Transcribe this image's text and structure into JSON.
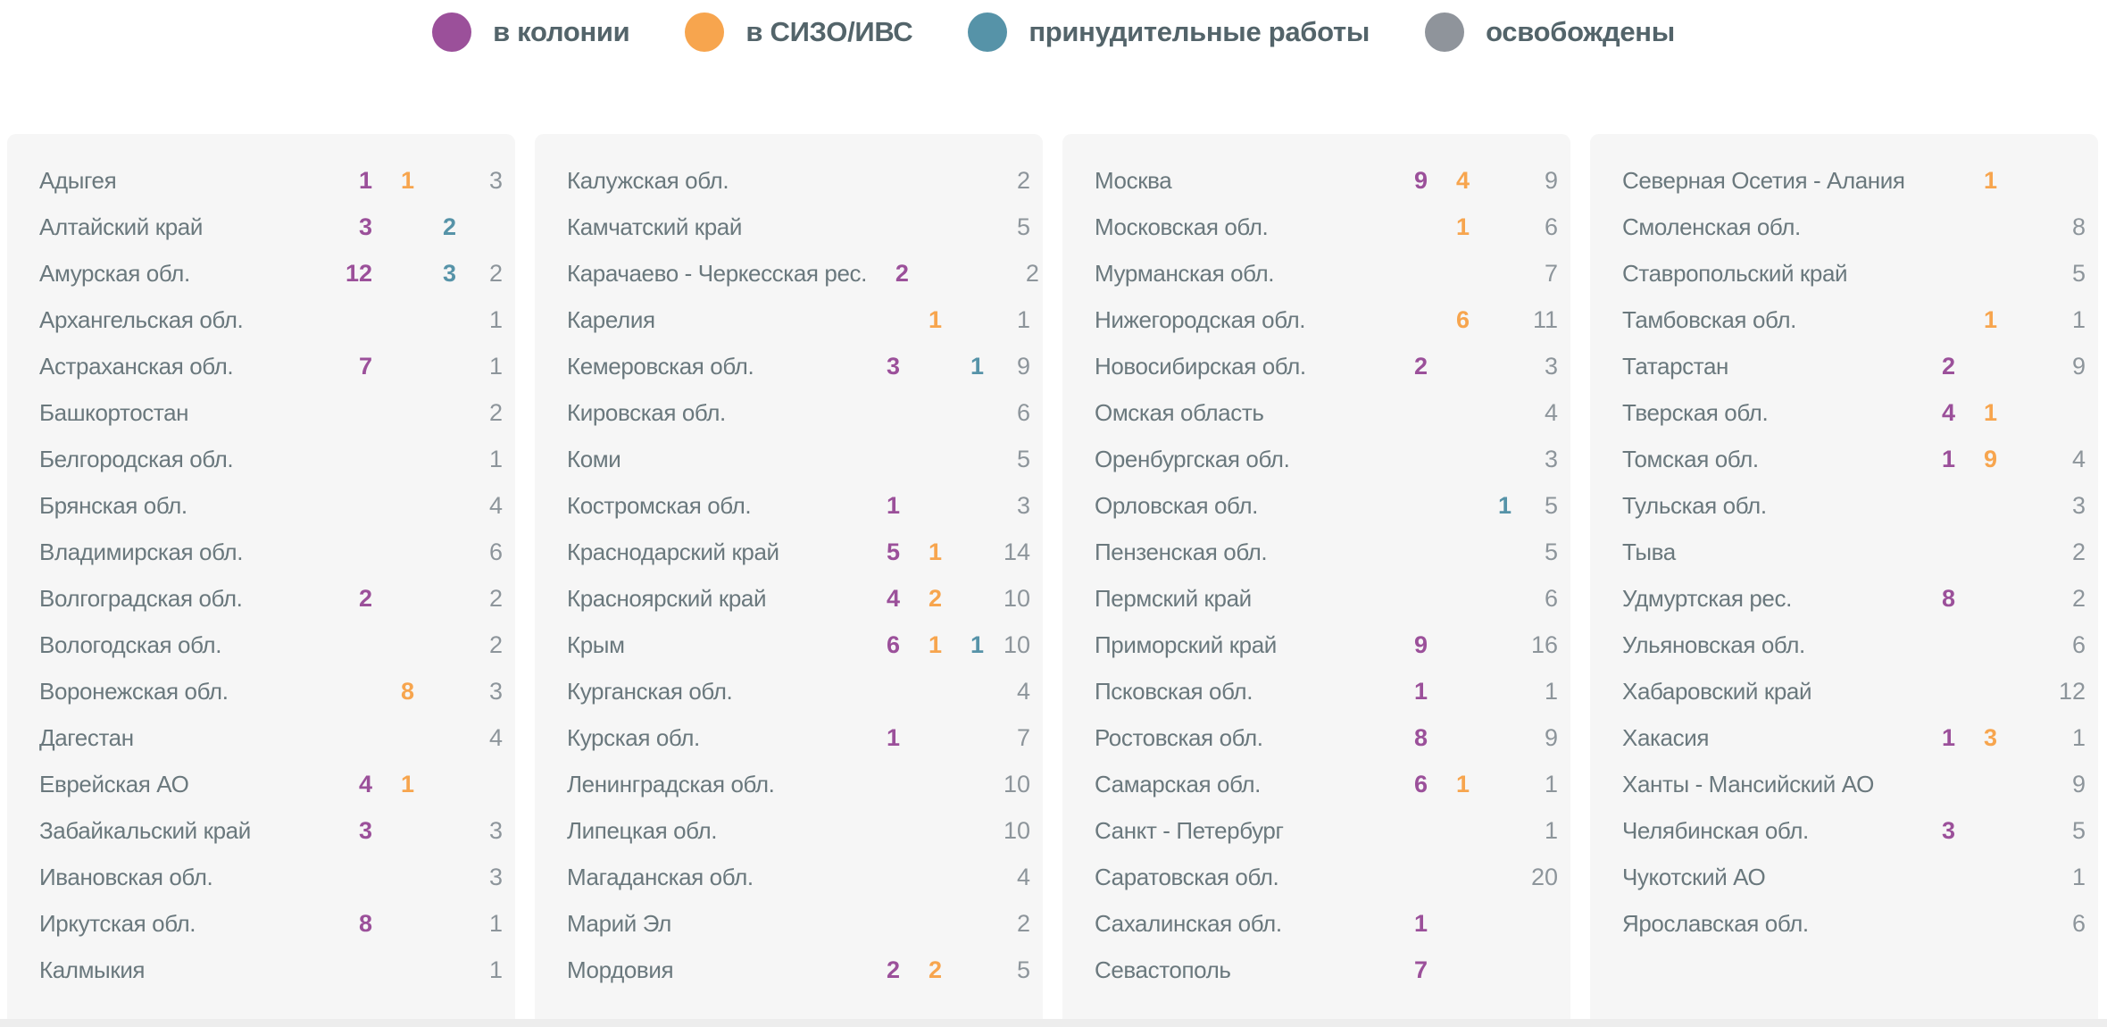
{
  "colors": {
    "colony": "#9b509a",
    "sizo": "#f7a54e",
    "forced": "#5693a8",
    "released": "#8f949b",
    "released_number": "#8d959b",
    "label": "#6a787d",
    "legend_text": "#53646a",
    "panel_bg": "#f6f6f6",
    "page_bg": "#ffffff"
  },
  "legend": {
    "items": [
      {
        "label": "в колонии",
        "color": "#9b509a",
        "key": "colony"
      },
      {
        "label": "в СИЗО/ИВС",
        "color": "#f7a54e",
        "key": "sizo"
      },
      {
        "label": "принудительные работы",
        "color": "#5693a8",
        "key": "forced"
      },
      {
        "label": "освобождены",
        "color": "#8f949b",
        "key": "released"
      }
    ]
  },
  "chart_data": {
    "type": "table",
    "series_legend": [
      "в колонии",
      "в СИЗО/ИВС",
      "принудительные работы",
      "освобождены"
    ],
    "columns": [
      {
        "rows": [
          {
            "region": "Адыгея",
            "colony": "1",
            "sizo": "1",
            "forced": "",
            "released": "3"
          },
          {
            "region": "Алтайский край",
            "colony": "3",
            "sizo": "",
            "forced": "2",
            "released": ""
          },
          {
            "region": "Амурская обл.",
            "colony": "12",
            "sizo": "",
            "forced": "3",
            "released": "2"
          },
          {
            "region": "Архангельская обл.",
            "colony": "",
            "sizo": "",
            "forced": "",
            "released": "1"
          },
          {
            "region": "Астраханская обл.",
            "colony": "7",
            "sizo": "",
            "forced": "",
            "released": "1"
          },
          {
            "region": "Башкортостан",
            "colony": "",
            "sizo": "",
            "forced": "",
            "released": "2"
          },
          {
            "region": "Белгородская обл.",
            "colony": "",
            "sizo": "",
            "forced": "",
            "released": "1"
          },
          {
            "region": "Брянская обл.",
            "colony": "",
            "sizo": "",
            "forced": "",
            "released": "4"
          },
          {
            "region": "Владимирская обл.",
            "colony": "",
            "sizo": "",
            "forced": "",
            "released": "6"
          },
          {
            "region": "Волгоградская обл.",
            "colony": "2",
            "sizo": "",
            "forced": "",
            "released": "2"
          },
          {
            "region": "Вологодская обл.",
            "colony": "",
            "sizo": "",
            "forced": "",
            "released": "2"
          },
          {
            "region": "Воронежская обл.",
            "colony": "",
            "sizo": "8",
            "forced": "",
            "released": "3"
          },
          {
            "region": "Дагестан",
            "colony": "",
            "sizo": "",
            "forced": "",
            "released": "4"
          },
          {
            "region": "Еврейская АО",
            "colony": "4",
            "sizo": "1",
            "forced": "",
            "released": ""
          },
          {
            "region": "Забайкальский край",
            "colony": "3",
            "sizo": "",
            "forced": "",
            "released": "3"
          },
          {
            "region": "Ивановская обл.",
            "colony": "",
            "sizo": "",
            "forced": "",
            "released": "3"
          },
          {
            "region": "Иркутская обл.",
            "colony": "8",
            "sizo": "",
            "forced": "",
            "released": "1"
          },
          {
            "region": "Калмыкия",
            "colony": "",
            "sizo": "",
            "forced": "",
            "released": "1"
          }
        ]
      },
      {
        "rows": [
          {
            "region": "Калужская обл.",
            "colony": "",
            "sizo": "",
            "forced": "",
            "released": "2"
          },
          {
            "region": "Камчатский край",
            "colony": "",
            "sizo": "",
            "forced": "",
            "released": "5"
          },
          {
            "region": "Карачаево - Черкесская рес.",
            "colony": "2",
            "sizo": "",
            "forced": "",
            "released": "2"
          },
          {
            "region": "Карелия",
            "colony": "",
            "sizo": "1",
            "forced": "",
            "released": "1"
          },
          {
            "region": "Кемеровская обл.",
            "colony": "3",
            "sizo": "",
            "forced": "1",
            "released": "9"
          },
          {
            "region": "Кировская обл.",
            "colony": "",
            "sizo": "",
            "forced": "",
            "released": "6"
          },
          {
            "region": "Коми",
            "colony": "",
            "sizo": "",
            "forced": "",
            "released": "5"
          },
          {
            "region": "Костромская обл.",
            "colony": "1",
            "sizo": "",
            "forced": "",
            "released": "3"
          },
          {
            "region": "Краснодарский край",
            "colony": "5",
            "sizo": "1",
            "forced": "",
            "released": "14"
          },
          {
            "region": "Красноярский край",
            "colony": "4",
            "sizo": "2",
            "forced": "",
            "released": "10"
          },
          {
            "region": "Крым",
            "colony": "6",
            "sizo": "1",
            "forced": "1",
            "released": "10"
          },
          {
            "region": "Курганская обл.",
            "colony": "",
            "sizo": "",
            "forced": "",
            "released": "4"
          },
          {
            "region": "Курская обл.",
            "colony": "1",
            "sizo": "",
            "forced": "",
            "released": "7"
          },
          {
            "region": "Ленинградская обл.",
            "colony": "",
            "sizo": "",
            "forced": "",
            "released": "10"
          },
          {
            "region": "Липецкая обл.",
            "colony": "",
            "sizo": "",
            "forced": "",
            "released": "10"
          },
          {
            "region": "Магаданская обл.",
            "colony": "",
            "sizo": "",
            "forced": "",
            "released": "4"
          },
          {
            "region": "Марий Эл",
            "colony": "",
            "sizo": "",
            "forced": "",
            "released": "2"
          },
          {
            "region": "Мордовия",
            "colony": "2",
            "sizo": "2",
            "forced": "",
            "released": "5"
          }
        ]
      },
      {
        "rows": [
          {
            "region": "Москва",
            "colony": "9",
            "sizo": "4",
            "forced": "",
            "released": "9"
          },
          {
            "region": "Московская обл.",
            "colony": "",
            "sizo": "1",
            "forced": "",
            "released": "6"
          },
          {
            "region": "Мурманская обл.",
            "colony": "",
            "sizo": "",
            "forced": "",
            "released": "7"
          },
          {
            "region": "Нижегородская обл.",
            "colony": "",
            "sizo": "6",
            "forced": "",
            "released": "11"
          },
          {
            "region": "Новосибирская обл.",
            "colony": "2",
            "sizo": "",
            "forced": "",
            "released": "3"
          },
          {
            "region": "Омская область",
            "colony": "",
            "sizo": "",
            "forced": "",
            "released": "4"
          },
          {
            "region": "Оренбургская обл.",
            "colony": "",
            "sizo": "",
            "forced": "",
            "released": "3"
          },
          {
            "region": "Орловская обл.",
            "colony": "",
            "sizo": "",
            "forced": "1",
            "released": "5"
          },
          {
            "region": "Пензенская обл.",
            "colony": "",
            "sizo": "",
            "forced": "",
            "released": "5"
          },
          {
            "region": "Пермский край",
            "colony": "",
            "sizo": "",
            "forced": "",
            "released": "6"
          },
          {
            "region": "Приморский край",
            "colony": "9",
            "sizo": "",
            "forced": "",
            "released": "16"
          },
          {
            "region": "Псковская обл.",
            "colony": "1",
            "sizo": "",
            "forced": "",
            "released": "1"
          },
          {
            "region": "Ростовская обл.",
            "colony": "8",
            "sizo": "",
            "forced": "",
            "released": "9"
          },
          {
            "region": "Самарская обл.",
            "colony": "6",
            "sizo": "1",
            "forced": "",
            "released": "1"
          },
          {
            "region": "Санкт - Петербург",
            "colony": "",
            "sizo": "",
            "forced": "",
            "released": "1"
          },
          {
            "region": "Саратовская обл.",
            "colony": "",
            "sizo": "",
            "forced": "",
            "released": "20"
          },
          {
            "region": "Сахалинская обл.",
            "colony": "1",
            "sizo": "",
            "forced": "",
            "released": ""
          },
          {
            "region": "Севастополь",
            "colony": "7",
            "sizo": "",
            "forced": "",
            "released": ""
          }
        ]
      },
      {
        "rows": [
          {
            "region": "Северная Осетия - Алания",
            "colony": "",
            "sizo": "1",
            "forced": "",
            "released": ""
          },
          {
            "region": "Смоленская обл.",
            "colony": "",
            "sizo": "",
            "forced": "",
            "released": "8"
          },
          {
            "region": "Ставропольский край",
            "colony": "",
            "sizo": "",
            "forced": "",
            "released": "5"
          },
          {
            "region": "Тамбовская обл.",
            "colony": "",
            "sizo": "1",
            "forced": "",
            "released": "1"
          },
          {
            "region": "Татарстан",
            "colony": "2",
            "sizo": "",
            "forced": "",
            "released": "9"
          },
          {
            "region": "Тверская обл.",
            "colony": "4",
            "sizo": "1",
            "forced": "",
            "released": ""
          },
          {
            "region": "Томская обл.",
            "colony": "1",
            "sizo": "9",
            "forced": "",
            "released": "4"
          },
          {
            "region": "Тульская обл.",
            "colony": "",
            "sizo": "",
            "forced": "",
            "released": "3"
          },
          {
            "region": "Тыва",
            "colony": "",
            "sizo": "",
            "forced": "",
            "released": "2"
          },
          {
            "region": "Удмуртская рес.",
            "colony": "8",
            "sizo": "",
            "forced": "",
            "released": "2"
          },
          {
            "region": "Ульяновская обл.",
            "colony": "",
            "sizo": "",
            "forced": "",
            "released": "6"
          },
          {
            "region": "Хабаровский край",
            "colony": "",
            "sizo": "",
            "forced": "",
            "released": "12"
          },
          {
            "region": "Хакасия",
            "colony": "1",
            "sizo": "3",
            "forced": "",
            "released": "1"
          },
          {
            "region": "Ханты - Мансийский АО",
            "colony": "",
            "sizo": "",
            "forced": "",
            "released": "9"
          },
          {
            "region": "Челябинская обл.",
            "colony": "3",
            "sizo": "",
            "forced": "",
            "released": "5"
          },
          {
            "region": "Чукотский АО",
            "colony": "",
            "sizo": "",
            "forced": "",
            "released": "1"
          },
          {
            "region": "Ярославская обл.",
            "colony": "",
            "sizo": "",
            "forced": "",
            "released": "6"
          }
        ]
      }
    ]
  }
}
